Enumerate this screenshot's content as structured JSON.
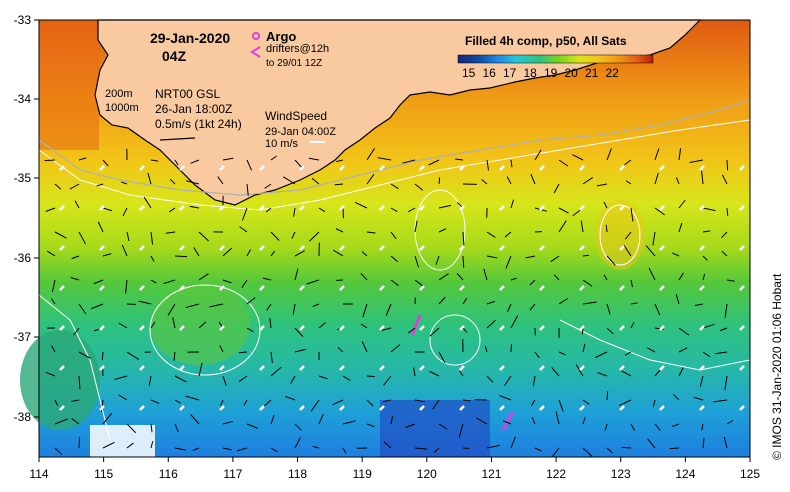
{
  "map": {
    "date": "29-Jan-2020",
    "time": "04Z",
    "product_title": "Filled 4h comp, p50, All Sats",
    "colorbar": {
      "ticks": [
        15,
        16,
        17,
        18,
        19,
        20,
        21,
        22
      ],
      "colors": [
        "#1a237e",
        "#0d47a1",
        "#1e88e5",
        "#26c6da",
        "#2ec27e",
        "#7cd41a",
        "#d8e51a",
        "#f4c418",
        "#f09a16",
        "#e55b12",
        "#b81e0e"
      ]
    },
    "legend": {
      "argo_label": "Argo",
      "drifters_label": "drifters@12h",
      "drifters_to": "to 29/01 12Z",
      "contour_200": "200m",
      "contour_1000": "1000m",
      "current_source": "NRT00 GSL",
      "current_date": "26-Jan 18:00Z",
      "current_scale": "0.5m/s (1kt 24h)",
      "wind_label": "WindSpeed",
      "wind_date": "29-Jan 04:00Z",
      "wind_scale": "10 m/s"
    },
    "axes": {
      "lon_ticks": [
        "114",
        "115",
        "116",
        "117",
        "118",
        "119",
        "120",
        "121",
        "122",
        "123",
        "124",
        "125"
      ],
      "lat_ticks": [
        "-33",
        "-34",
        "-35",
        "-36",
        "-37",
        "-38"
      ]
    },
    "credit": "© IMOS 31-Jan-2020 01:06 Hobart",
    "colors": {
      "land": "#f9caa0",
      "argo": "#e03ce0",
      "coast": "#000000"
    }
  }
}
